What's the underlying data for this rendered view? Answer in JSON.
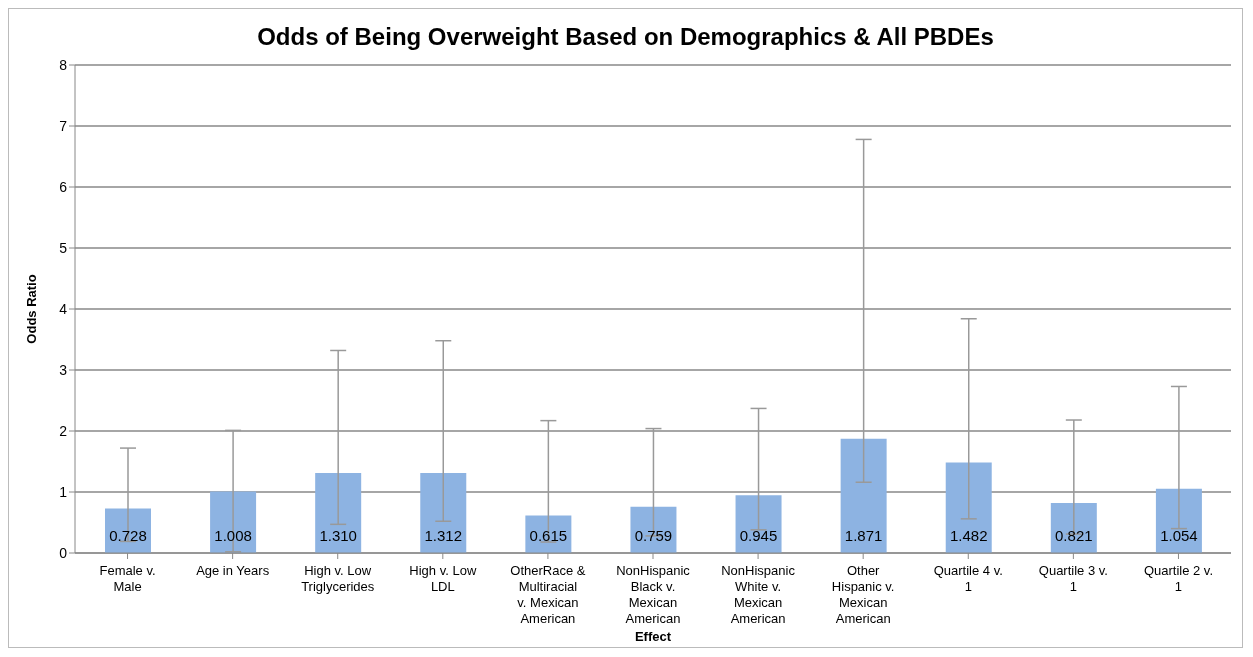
{
  "chart_data": {
    "type": "bar",
    "title": "Odds of Being Overweight Based on Demographics & All PBDEs",
    "xlabel": "Effect",
    "ylabel": "Odds Ratio",
    "categories": [
      "Female v. Male",
      "Age in Years",
      "High v. Low Triglycerides",
      "High v. Low LDL",
      "OtherRace & Multiracial v. Mexican American",
      "NonHispanic Black v. Mexican American",
      "NonHispanic White v. Mexican American",
      "Other Hispanic v. Mexican American",
      "Quartile 4 v. 1",
      "Quartile 3 v. 1",
      "Quartile 2 v. 1"
    ],
    "values": [
      0.728,
      1.008,
      1.31,
      1.312,
      0.615,
      0.759,
      0.945,
      1.871,
      1.482,
      0.821,
      1.054
    ],
    "errors": [
      [
        0.19,
        1.72
      ],
      [
        0.02,
        2.01
      ],
      [
        0.47,
        3.32
      ],
      [
        0.52,
        3.48
      ],
      [
        0.18,
        2.17
      ],
      [
        0.28,
        2.04
      ],
      [
        0.38,
        2.37
      ],
      [
        1.16,
        6.78
      ],
      [
        0.56,
        3.84
      ],
      [
        0.31,
        2.18
      ],
      [
        0.4,
        2.73
      ]
    ],
    "value_labels": [
      "0.728",
      "1.008",
      "1.310",
      "1.312",
      "0.615",
      "0.759",
      "0.945",
      "1.871",
      "1.482",
      "0.821",
      "1.054"
    ],
    "color": "#8db3e2",
    "ylim": [
      0,
      8
    ],
    "yticks": [
      0,
      1,
      2,
      3,
      4,
      5,
      6,
      7,
      8
    ],
    "grid": "y",
    "legend": false
  }
}
